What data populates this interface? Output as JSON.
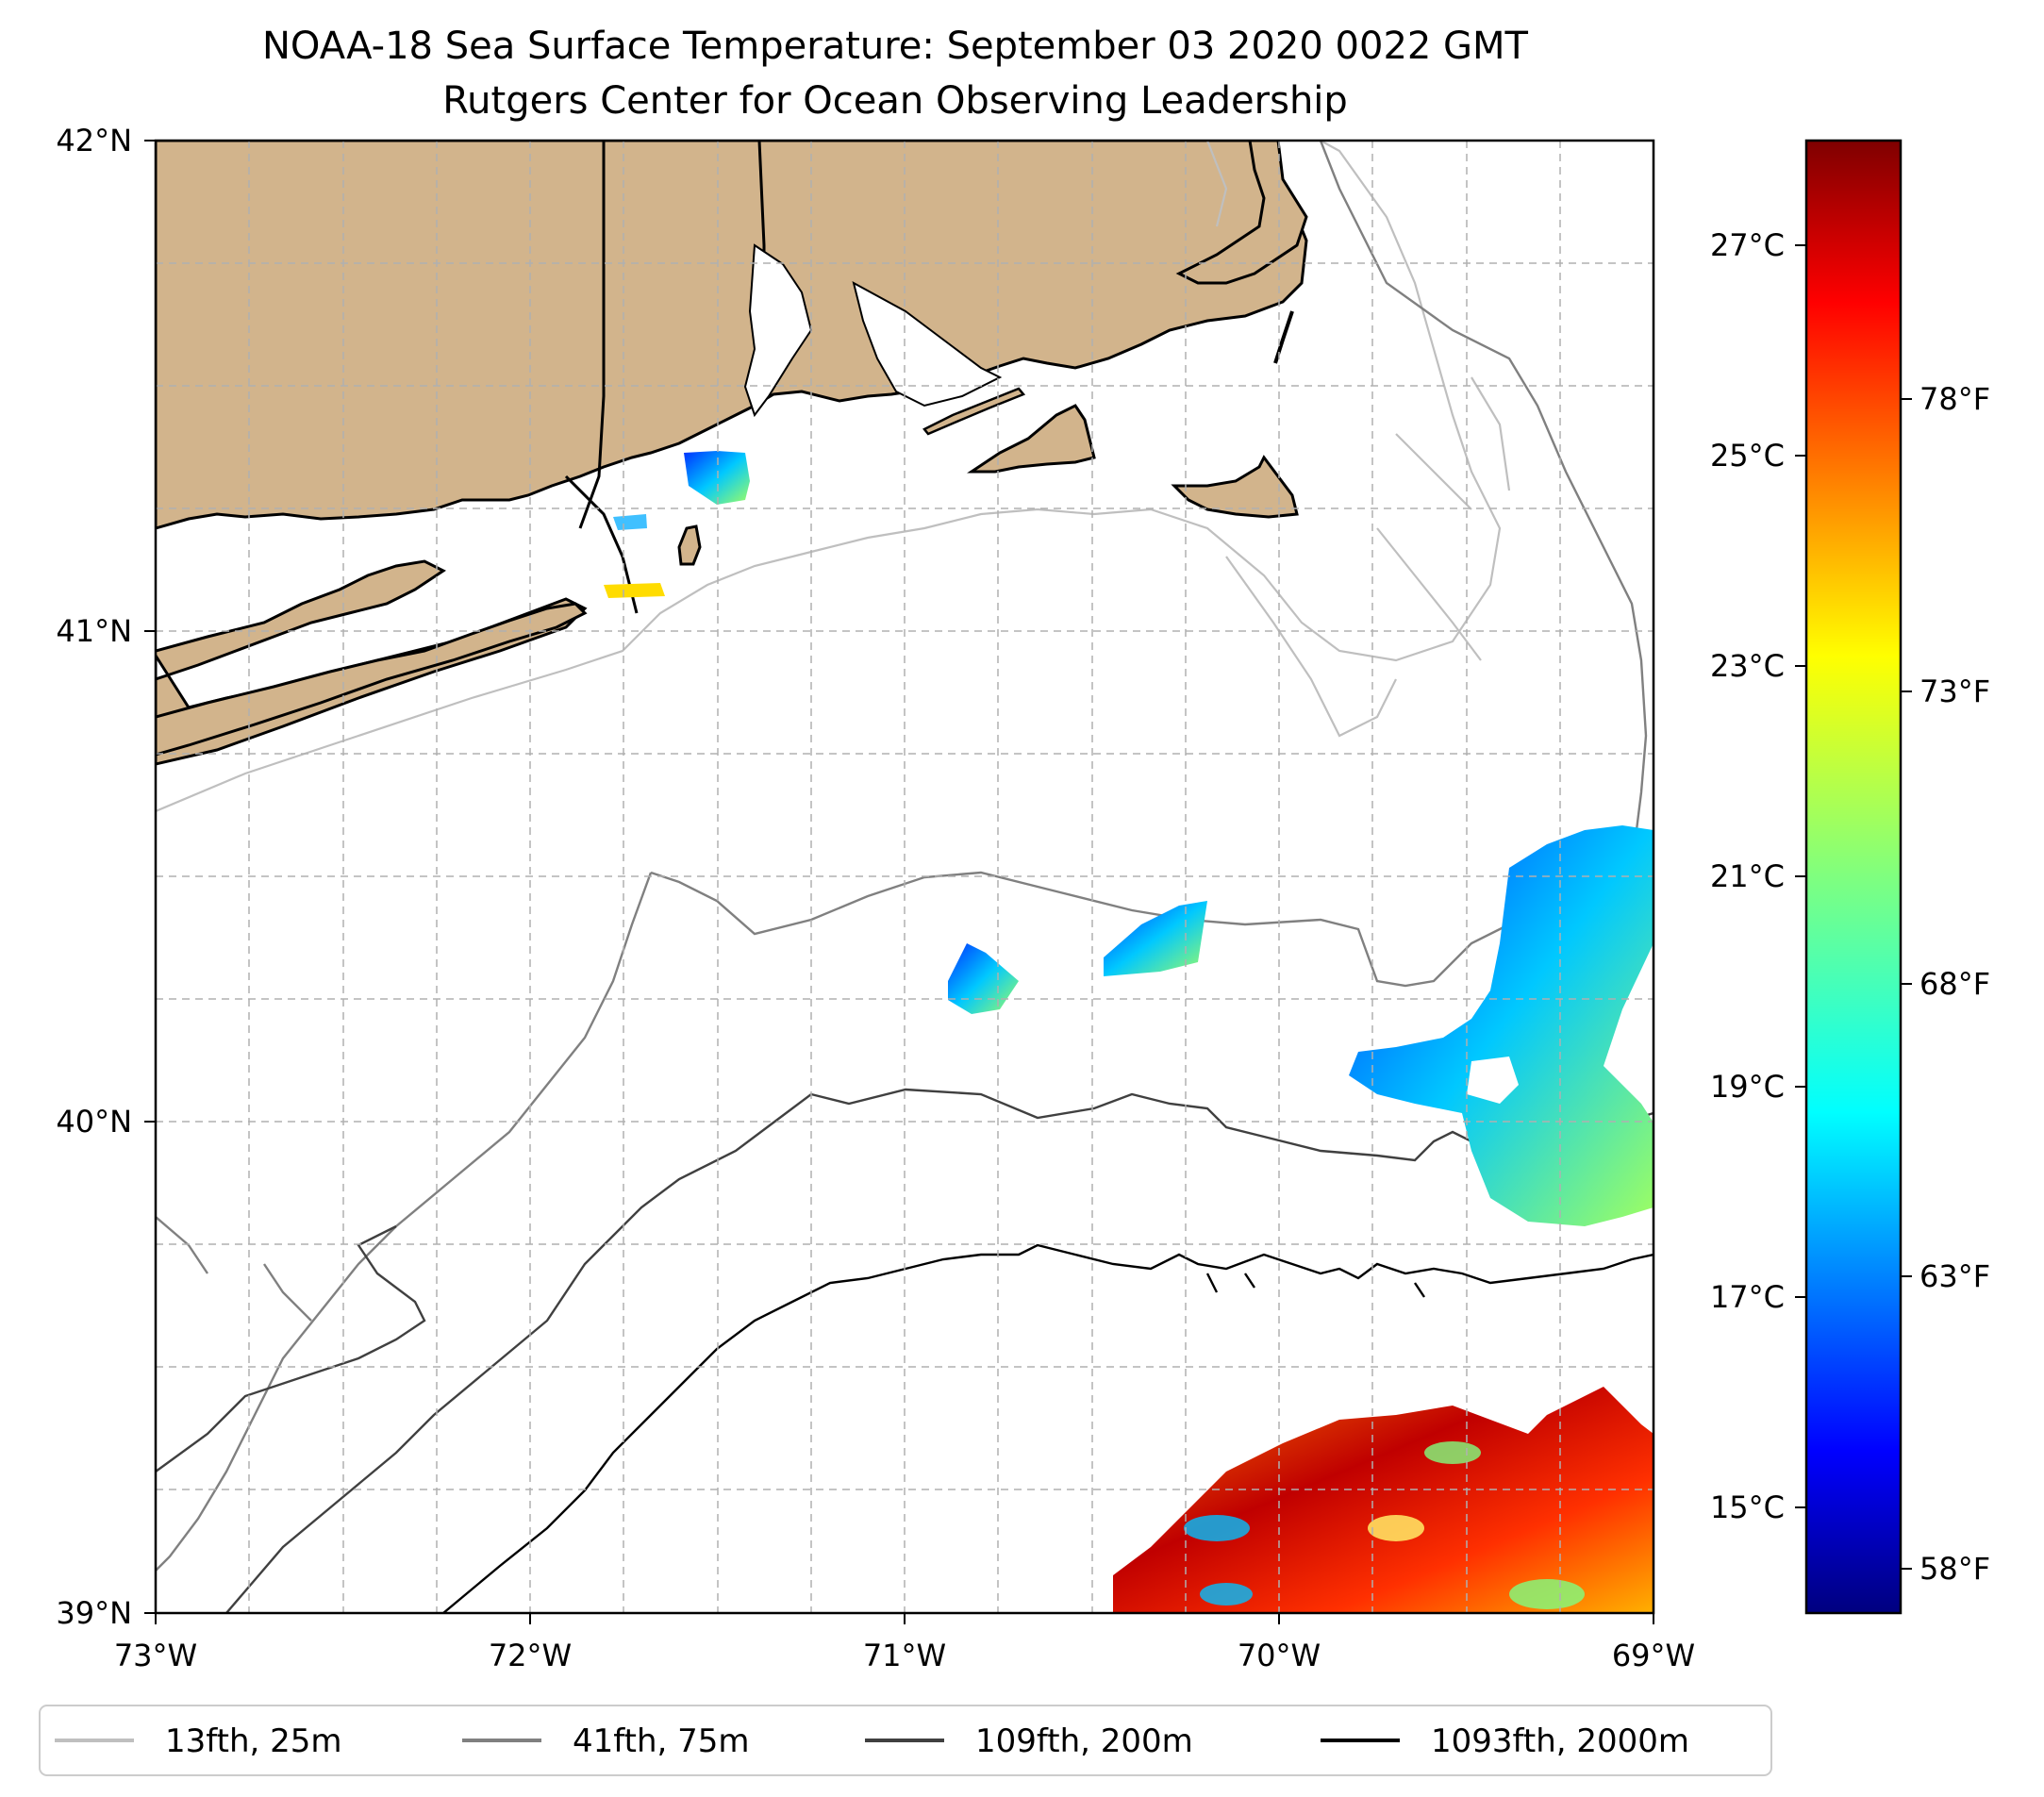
{
  "title": {
    "line1": "NOAA-18 Sea Surface Temperature: September 03 2020 0022 GMT",
    "line2": "Rutgers Center for Ocean Observing Leadership"
  },
  "map": {
    "lon_range": [
      -73,
      -69
    ],
    "lat_range": [
      39,
      42
    ],
    "lon_ticks": [
      "73°W",
      "72°W",
      "71°W",
      "70°W",
      "69°W"
    ],
    "lat_ticks": [
      "42°N",
      "41°N",
      "40°N",
      "39°N"
    ],
    "gridlines": true,
    "land_color": "#d2b48c",
    "coastline_color": "#000000"
  },
  "colorbar": {
    "colormap": "jet",
    "celsius_ticks": [
      "27°C",
      "25°C",
      "23°C",
      "21°C",
      "19°C",
      "17°C",
      "15°C"
    ],
    "fahrenheit_ticks": [
      "78°F",
      "73°F",
      "68°F",
      "63°F",
      "58°F"
    ],
    "colors": [
      "#00007f",
      "#0000ff",
      "#007fff",
      "#00ffff",
      "#7fff7f",
      "#ffff00",
      "#ff7f00",
      "#ff0000",
      "#7f0000"
    ]
  },
  "legend": {
    "placement": "bottom",
    "entries": [
      {
        "label": "13fth, 25m",
        "color": "#bfbfbf"
      },
      {
        "label": "41fth, 75m",
        "color": "#808080"
      },
      {
        "label": "109fth, 200m",
        "color": "#404040"
      },
      {
        "label": "1093fth, 2000m",
        "color": "#000000"
      }
    ]
  }
}
